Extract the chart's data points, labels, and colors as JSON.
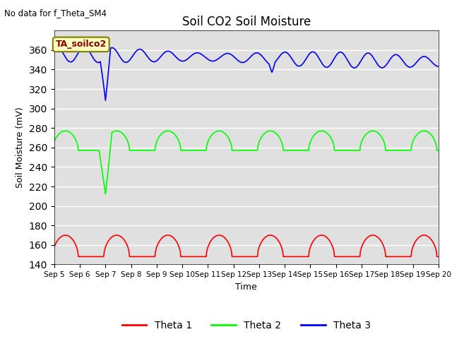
{
  "title": "Soil CO2 Soil Moisture",
  "xlabel": "Time",
  "ylabel": "Soil Moisture (mV)",
  "top_left_text": "No data for f_Theta_SM4",
  "annotation_text": "TA_soilco2",
  "ylim": [
    140,
    380
  ],
  "yticks": [
    140,
    160,
    180,
    200,
    220,
    240,
    260,
    280,
    300,
    320,
    340,
    360
  ],
  "xtick_labels": [
    "Sep 5",
    "Sep 6",
    "Sep 7",
    "Sep 8",
    "Sep 9",
    "Sep 10",
    "Sep 11",
    "Sep 12",
    "Sep 13",
    "Sep 14",
    "Sep 15",
    "Sep 16",
    "Sep 17",
    "Sep 18",
    "Sep 19",
    "Sep 20"
  ],
  "bg_color": "#e0e0e0",
  "legend_entries": [
    "Theta 1",
    "Theta 2",
    "Theta 3"
  ],
  "legend_colors": [
    "red",
    "lime",
    "blue"
  ],
  "n_days": 15,
  "theta1_base": 148,
  "theta1_amp": 22,
  "theta2_base": 257,
  "theta2_amp": 20,
  "theta3_base": 356,
  "theta3_amp": 6,
  "theta2_dip_day": 2.0,
  "theta2_dip_val": 212,
  "theta3_dip1_day": 2.0,
  "theta3_dip1_val": 308,
  "theta3_dip2_day": 8.5,
  "theta3_dip2_val": 337
}
